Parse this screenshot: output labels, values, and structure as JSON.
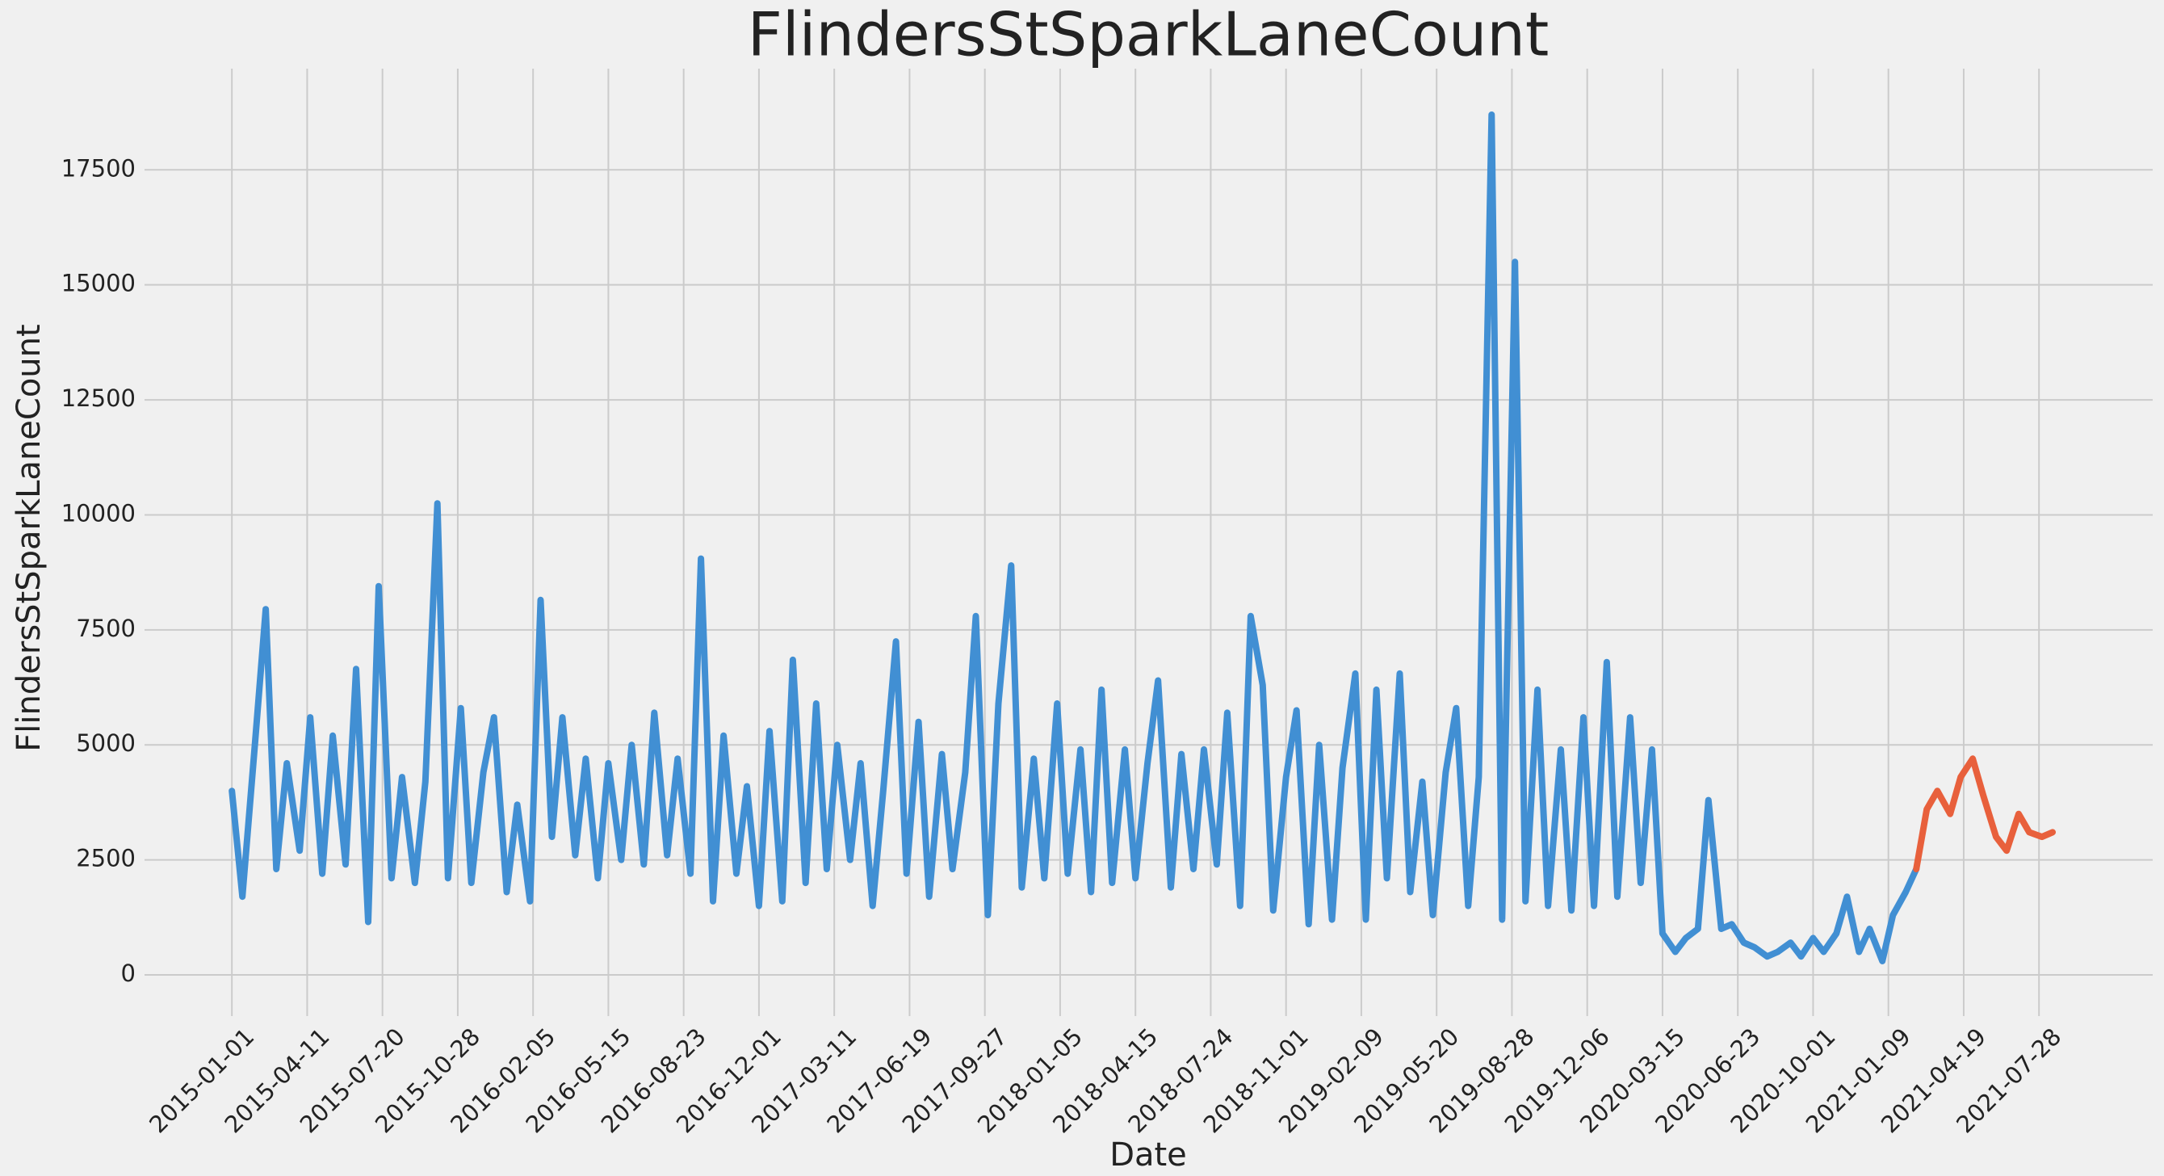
{
  "chart_data": {
    "type": "line",
    "title": "FlindersStSparkLaneCount",
    "x_label": "Date",
    "y_label": "FlindersStSparkLaneCount",
    "xlim": [
      "2014-09-07",
      "2021-12-26"
    ],
    "xticks": [
      "2015-01-01",
      "2015-04-11",
      "2015-07-20",
      "2015-10-28",
      "2016-02-05",
      "2016-05-15",
      "2016-08-23",
      "2016-12-01",
      "2017-03-11",
      "2017-06-19",
      "2017-09-27",
      "2018-01-05",
      "2018-04-15",
      "2018-07-24",
      "2018-11-01",
      "2019-02-09",
      "2019-05-20",
      "2019-08-28",
      "2019-12-06",
      "2020-03-15",
      "2020-06-23",
      "2020-10-01",
      "2021-01-09",
      "2021-04-19",
      "2021-07-28"
    ],
    "ylim": [
      -720,
      19700
    ],
    "yticks": [
      0,
      2500,
      5000,
      7500,
      10000,
      12500,
      15000,
      17500
    ],
    "grid": true,
    "series": [
      {
        "color": "#418fd3",
        "x": [
          "2015-01-01",
          "2015-01-15",
          "2015-02-01",
          "2015-02-15",
          "2015-03-01",
          "2015-03-15",
          "2015-04-01",
          "2015-04-15",
          "2015-05-01",
          "2015-05-15",
          "2015-06-01",
          "2015-06-15",
          "2015-07-01",
          "2015-07-15",
          "2015-08-01",
          "2015-08-15",
          "2015-09-01",
          "2015-09-15",
          "2015-10-01",
          "2015-10-15",
          "2015-11-01",
          "2015-11-15",
          "2015-12-01",
          "2015-12-15",
          "2016-01-01",
          "2016-01-15",
          "2016-02-01",
          "2016-02-15",
          "2016-03-01",
          "2016-03-15",
          "2016-04-01",
          "2016-04-15",
          "2016-05-01",
          "2016-05-15",
          "2016-06-01",
          "2016-06-15",
          "2016-07-01",
          "2016-07-15",
          "2016-08-01",
          "2016-08-15",
          "2016-09-01",
          "2016-09-15",
          "2016-10-01",
          "2016-10-15",
          "2016-11-01",
          "2016-11-15",
          "2016-12-01",
          "2016-12-15",
          "2017-01-01",
          "2017-01-15",
          "2017-02-01",
          "2017-02-15",
          "2017-03-01",
          "2017-03-15",
          "2017-04-01",
          "2017-04-15",
          "2017-05-01",
          "2017-05-15",
          "2017-06-01",
          "2017-06-15",
          "2017-07-01",
          "2017-07-15",
          "2017-08-01",
          "2017-08-15",
          "2017-09-01",
          "2017-09-15",
          "2017-10-01",
          "2017-10-15",
          "2017-11-01",
          "2017-11-15",
          "2017-12-01",
          "2017-12-15",
          "2018-01-01",
          "2018-01-15",
          "2018-02-01",
          "2018-02-15",
          "2018-03-01",
          "2018-03-15",
          "2018-04-01",
          "2018-04-15",
          "2018-05-01",
          "2018-05-15",
          "2018-06-01",
          "2018-06-15",
          "2018-07-01",
          "2018-07-15",
          "2018-08-01",
          "2018-08-15",
          "2018-09-01",
          "2018-09-15",
          "2018-10-01",
          "2018-10-15",
          "2018-11-01",
          "2018-11-15",
          "2018-12-01",
          "2018-12-15",
          "2019-01-01",
          "2019-01-15",
          "2019-02-01",
          "2019-02-15",
          "2019-03-01",
          "2019-03-15",
          "2019-04-01",
          "2019-04-15",
          "2019-05-01",
          "2019-05-15",
          "2019-06-01",
          "2019-06-15",
          "2019-07-01",
          "2019-07-15",
          "2019-08-01",
          "2019-08-15",
          "2019-09-01",
          "2019-09-15",
          "2019-10-01",
          "2019-10-15",
          "2019-11-01",
          "2019-11-15",
          "2019-12-01",
          "2019-12-15",
          "2020-01-01",
          "2020-01-15",
          "2020-02-01",
          "2020-02-15",
          "2020-03-01",
          "2020-03-15",
          "2020-04-01",
          "2020-04-15",
          "2020-05-01",
          "2020-05-15",
          "2020-06-01",
          "2020-06-15",
          "2020-07-01",
          "2020-07-15",
          "2020-08-01",
          "2020-08-15",
          "2020-09-01",
          "2020-09-15",
          "2020-10-01",
          "2020-10-15",
          "2020-11-01",
          "2020-11-15",
          "2020-12-01",
          "2020-12-15",
          "2021-01-01",
          "2021-01-15",
          "2021-02-01",
          "2021-02-15"
        ],
        "values": [
          4000,
          1700,
          5100,
          7950,
          2300,
          4600,
          2700,
          5600,
          2200,
          5200,
          2400,
          6650,
          1150,
          8450,
          2100,
          4300,
          2000,
          4200,
          10250,
          2100,
          5800,
          2000,
          4400,
          5600,
          1800,
          3700,
          1600,
          8150,
          3000,
          5600,
          2600,
          4700,
          2100,
          4600,
          2500,
          5000,
          2400,
          5700,
          2600,
          4700,
          2200,
          9050,
          1600,
          5200,
          2200,
          4100,
          1500,
          5300,
          1600,
          6850,
          2000,
          5900,
          2300,
          5000,
          2500,
          4600,
          1500,
          4000,
          7250,
          2200,
          5500,
          1700,
          4800,
          2300,
          4400,
          7800,
          1300,
          5900,
          8900,
          1900,
          4700,
          2100,
          5900,
          2200,
          4900,
          1800,
          6200,
          2000,
          4900,
          2100,
          4600,
          6400,
          1900,
          4800,
          2300,
          4900,
          2400,
          5700,
          1500,
          7800,
          6300,
          1400,
          4300,
          5750,
          1100,
          5000,
          1200,
          4500,
          6550,
          1200,
          6200,
          2100,
          6550,
          1800,
          4200,
          1300,
          4400,
          5800,
          1500,
          4300,
          18700,
          1200,
          15500,
          1600,
          6200,
          1500,
          4900,
          1400,
          5600,
          1500,
          6800,
          1700,
          5600,
          2000,
          4900,
          900,
          500,
          800,
          1000,
          3800,
          1000,
          1100,
          700,
          600,
          400,
          500,
          700,
          400,
          800,
          500,
          900,
          1700,
          500,
          1000,
          300,
          1300,
          1800,
          2300
        ]
      },
      {
        "color": "#e8603c",
        "x": [
          "2021-02-15",
          "2021-03-01",
          "2021-03-15",
          "2021-04-01",
          "2021-04-15",
          "2021-05-01",
          "2021-05-15",
          "2021-06-01",
          "2021-06-15",
          "2021-07-01",
          "2021-07-15",
          "2021-08-01",
          "2021-08-15"
        ],
        "values": [
          2300,
          3600,
          4000,
          3500,
          4300,
          4700,
          3900,
          3000,
          2700,
          3500,
          3100,
          3000,
          3100
        ]
      }
    ]
  }
}
